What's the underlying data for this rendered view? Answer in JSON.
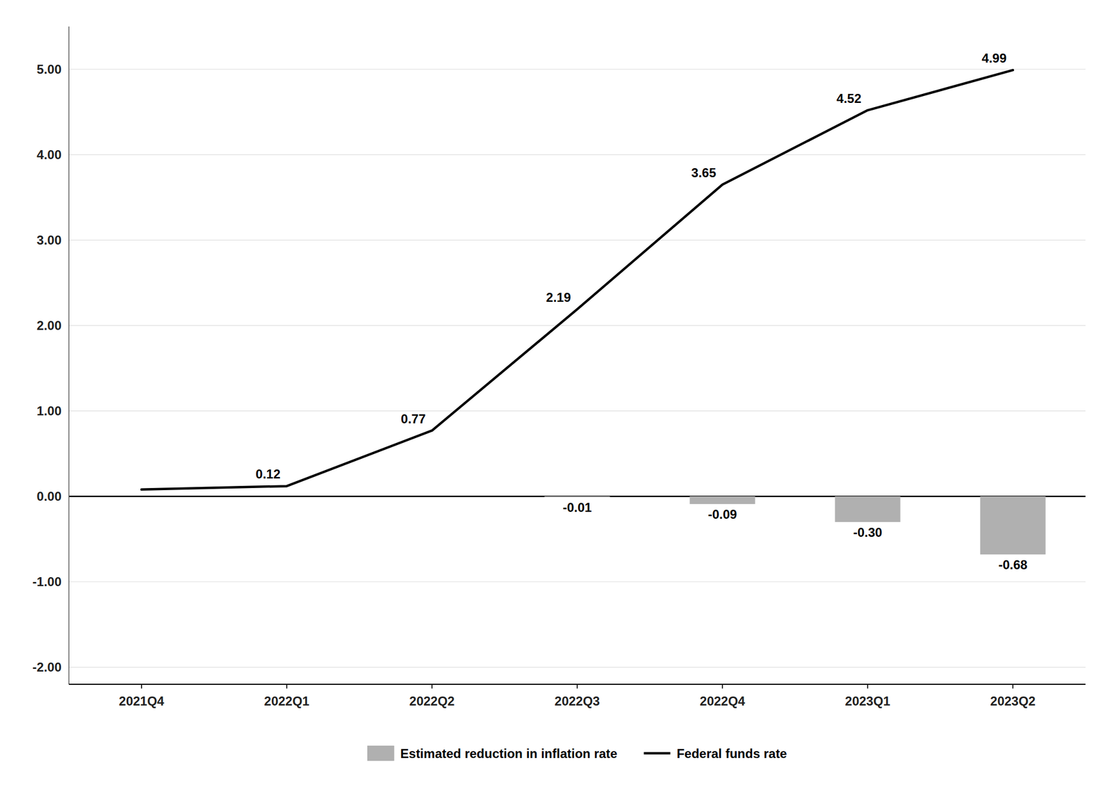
{
  "chart_data": {
    "type": "bar",
    "categories": [
      "2021Q4",
      "2022Q1",
      "2022Q2",
      "2022Q3",
      "2022Q4",
      "2023Q1",
      "2023Q2"
    ],
    "series": [
      {
        "name": "Estimated reduction in inflation rate",
        "type": "bar",
        "color": "#b0b0b0",
        "values": [
          0.0,
          0.0,
          0.0,
          -0.01,
          -0.09,
          -0.3,
          -0.68
        ],
        "value_labels": [
          null,
          null,
          null,
          "-0.01",
          "-0.09",
          "-0.30",
          "-0.68"
        ]
      },
      {
        "name": "Federal funds rate",
        "type": "line",
        "color": "#000000",
        "values": [
          0.08,
          0.12,
          0.77,
          2.19,
          3.65,
          4.52,
          4.99
        ],
        "value_labels": [
          null,
          "0.12",
          "0.77",
          "2.19",
          "3.65",
          "4.52",
          "4.99"
        ]
      }
    ],
    "ylim": [
      -2.2,
      5.5
    ],
    "yticks": [
      {
        "value": -2.0,
        "label": "-2.00"
      },
      {
        "value": -1.0,
        "label": "-1.00"
      },
      {
        "value": 0.0,
        "label": "0.00"
      },
      {
        "value": 1.0,
        "label": "1.00"
      },
      {
        "value": 2.0,
        "label": "2.00"
      },
      {
        "value": 3.0,
        "label": "3.00"
      },
      {
        "value": 4.0,
        "label": "4.00"
      },
      {
        "value": 5.0,
        "label": "5.00"
      }
    ],
    "grid": true,
    "legend": "bottom",
    "data_labels": true
  }
}
